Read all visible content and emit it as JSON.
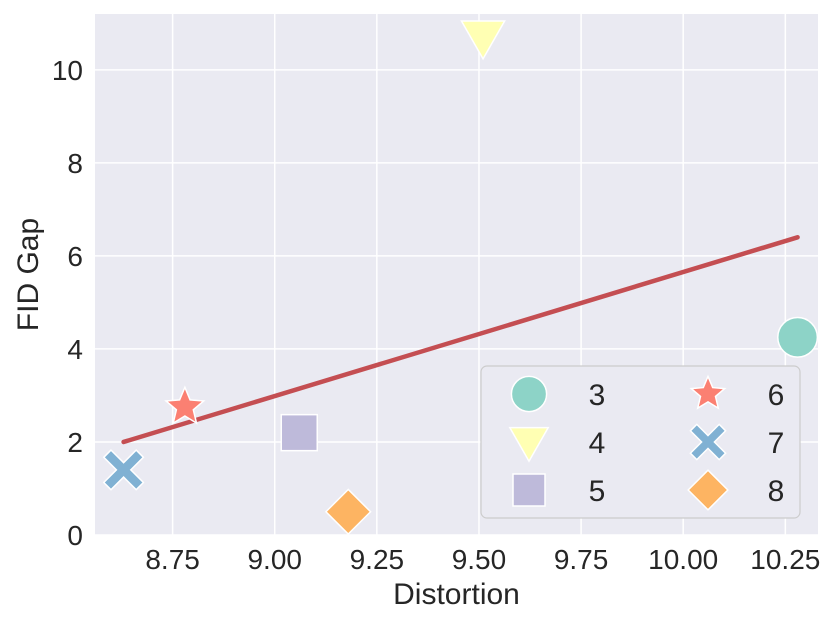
{
  "chart_data": {
    "type": "scatter",
    "title": "",
    "xlabel": "Distortion",
    "ylabel": "FID Gap",
    "xlim": [
      8.56,
      10.33
    ],
    "ylim": [
      0,
      11.2
    ],
    "xticks": [
      8.75,
      9.0,
      9.25,
      9.5,
      9.75,
      10.0,
      10.25
    ],
    "xtick_labels": [
      "8.75",
      "9.00",
      "9.25",
      "9.50",
      "9.75",
      "10.00",
      "10.25"
    ],
    "yticks": [
      0,
      2,
      4,
      6,
      8,
      10
    ],
    "ytick_labels": [
      "0",
      "2",
      "4",
      "6",
      "8",
      "10"
    ],
    "grid": true,
    "background": "#eaeaf2",
    "legend_position": "lower-right",
    "series": [
      {
        "name": "3",
        "marker": "circle",
        "color": "#8dd3c7",
        "x": 10.28,
        "y": 4.25
      },
      {
        "name": "4",
        "marker": "triangle-down",
        "color": "#ffffb3",
        "x": 9.51,
        "y": 10.7
      },
      {
        "name": "5",
        "marker": "square",
        "color": "#bebada",
        "x": 9.06,
        "y": 2.2
      },
      {
        "name": "6",
        "marker": "star",
        "color": "#fb8072",
        "x": 8.78,
        "y": 2.75
      },
      {
        "name": "7",
        "marker": "x",
        "color": "#80b1d3",
        "x": 8.63,
        "y": 1.4
      },
      {
        "name": "8",
        "marker": "diamond",
        "color": "#fdb462",
        "x": 9.18,
        "y": 0.5
      }
    ],
    "fit_line": {
      "color": "#c44e52",
      "x": [
        8.63,
        10.28
      ],
      "y": [
        2.0,
        6.4
      ]
    }
  }
}
